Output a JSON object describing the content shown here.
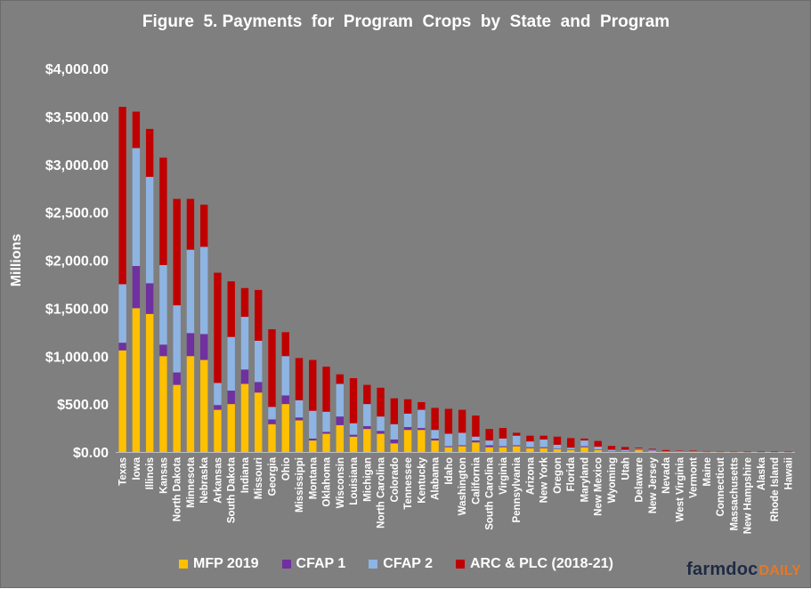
{
  "chart_data": {
    "type": "bar",
    "stacked": true,
    "title": "Figure  5. Payments  for  Program  Crops  by  State  and  Program",
    "ylabel": "Millions",
    "xlabel": "",
    "ylim": [
      0,
      4000
    ],
    "yticks": [
      0,
      500,
      1000,
      1500,
      2000,
      2500,
      3000,
      3500,
      4000
    ],
    "ytick_labels": [
      "$0.00",
      "$500.00",
      "$1,000.00",
      "$1,500.00",
      "$2,000.00",
      "$2,500.00",
      "$3,000.00",
      "$3,500.00",
      "$4,000.00"
    ],
    "grid": false,
    "legend_position": "bottom",
    "categories": [
      "Texas",
      "Iowa",
      "Illinois",
      "Kansas",
      "North Dakota",
      "Minnesota",
      "Nebraska",
      "Arkansas",
      "South Dakota",
      "Indiana",
      "Missouri",
      "Georgia",
      "Ohio",
      "Mississippi",
      "Montana",
      "Oklahoma",
      "Wisconsin",
      "Louisiana",
      "Michigan",
      "North Carolina",
      "Colorado",
      "Tennessee",
      "Kentucky",
      "Alabama",
      "Idaho",
      "Washington",
      "California",
      "South Carolina",
      "Virginia",
      "Pennsylvania",
      "Arizona",
      "New York",
      "Oregon",
      "Florida",
      "Maryland",
      "New Mexico",
      "Wyoming",
      "Utah",
      "Delaware",
      "New Jersey",
      "Nevada",
      "West Virginia",
      "Vermont",
      "Maine",
      "Connecticut",
      "Massachusetts",
      "New Hampshire",
      "Alaska",
      "Rhode Island",
      "Hawaii"
    ],
    "series": [
      {
        "name": "MFP 2019",
        "color": "#ffc000",
        "values": [
          1060,
          1500,
          1440,
          1000,
          700,
          1000,
          960,
          440,
          500,
          710,
          620,
          290,
          500,
          330,
          120,
          190,
          280,
          160,
          240,
          190,
          90,
          230,
          230,
          120,
          50,
          60,
          100,
          50,
          50,
          60,
          40,
          40,
          30,
          20,
          50,
          20,
          5,
          5,
          20,
          10,
          3,
          5,
          3,
          2,
          2,
          2,
          1,
          1,
          1,
          1
        ]
      },
      {
        "name": "CFAP 1",
        "color": "#7030a0",
        "values": [
          80,
          440,
          320,
          120,
          130,
          240,
          270,
          50,
          140,
          150,
          110,
          50,
          90,
          30,
          20,
          20,
          90,
          20,
          30,
          30,
          40,
          30,
          20,
          20,
          10,
          10,
          20,
          20,
          10,
          10,
          10,
          10,
          5,
          5,
          10,
          5,
          3,
          2,
          5,
          3,
          2,
          2,
          2,
          1,
          1,
          1,
          1,
          1,
          1,
          1
        ]
      },
      {
        "name": "CFAP 2",
        "color": "#8eb4e3",
        "values": [
          610,
          1230,
          1110,
          830,
          700,
          870,
          910,
          230,
          560,
          550,
          430,
          130,
          410,
          180,
          290,
          210,
          340,
          120,
          230,
          150,
          160,
          140,
          190,
          90,
          130,
          130,
          40,
          50,
          80,
          100,
          60,
          80,
          40,
          20,
          60,
          30,
          15,
          15,
          10,
          10,
          5,
          5,
          5,
          3,
          2,
          2,
          2,
          1,
          1,
          1
        ]
      },
      {
        "name": "ARC & PLC (2018-21)",
        "color": "#c00000",
        "values": [
          1850,
          380,
          500,
          1120,
          1110,
          530,
          440,
          1150,
          580,
          300,
          530,
          810,
          250,
          440,
          530,
          470,
          100,
          470,
          200,
          300,
          270,
          150,
          80,
          230,
          260,
          240,
          220,
          120,
          110,
          30,
          60,
          40,
          85,
          100,
          20,
          60,
          40,
          30,
          10,
          10,
          10,
          5,
          5,
          4,
          3,
          3,
          2,
          2,
          2,
          1
        ]
      }
    ]
  },
  "legend": {
    "items": [
      {
        "label": "MFP 2019",
        "color": "#ffc000"
      },
      {
        "label": "CFAP 1",
        "color": "#7030a0"
      },
      {
        "label": "CFAP 2",
        "color": "#8eb4e3"
      },
      {
        "label": "ARC & PLC (2018-21)",
        "color": "#c00000"
      }
    ]
  },
  "brand": {
    "part1": "farmdoc",
    "part2": "DAILY"
  }
}
